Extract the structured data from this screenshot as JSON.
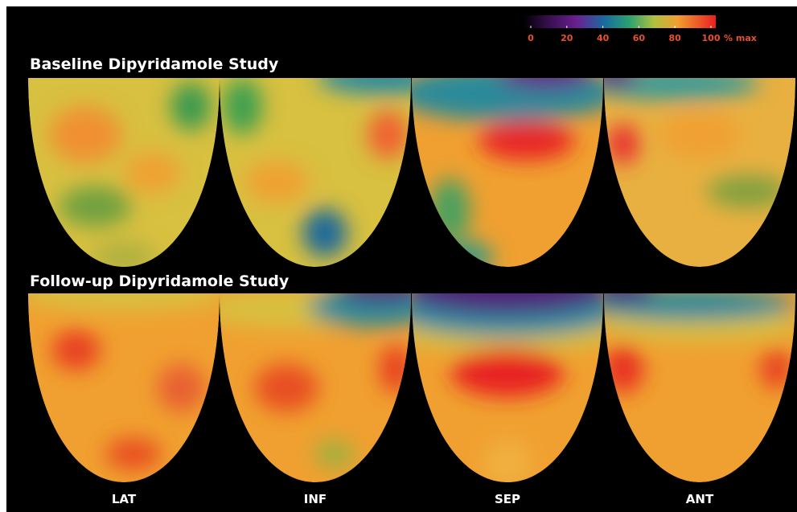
{
  "colorbar": {
    "ticks": [
      0,
      20,
      40,
      60,
      80,
      100
    ],
    "unit": "% max"
  },
  "rows": [
    {
      "title": "Baseline Dipyridamole Study"
    },
    {
      "title": "Follow-up Dipyridamole Study"
    }
  ],
  "views": [
    "LAT",
    "INF",
    "SEP",
    "ANT"
  ]
}
